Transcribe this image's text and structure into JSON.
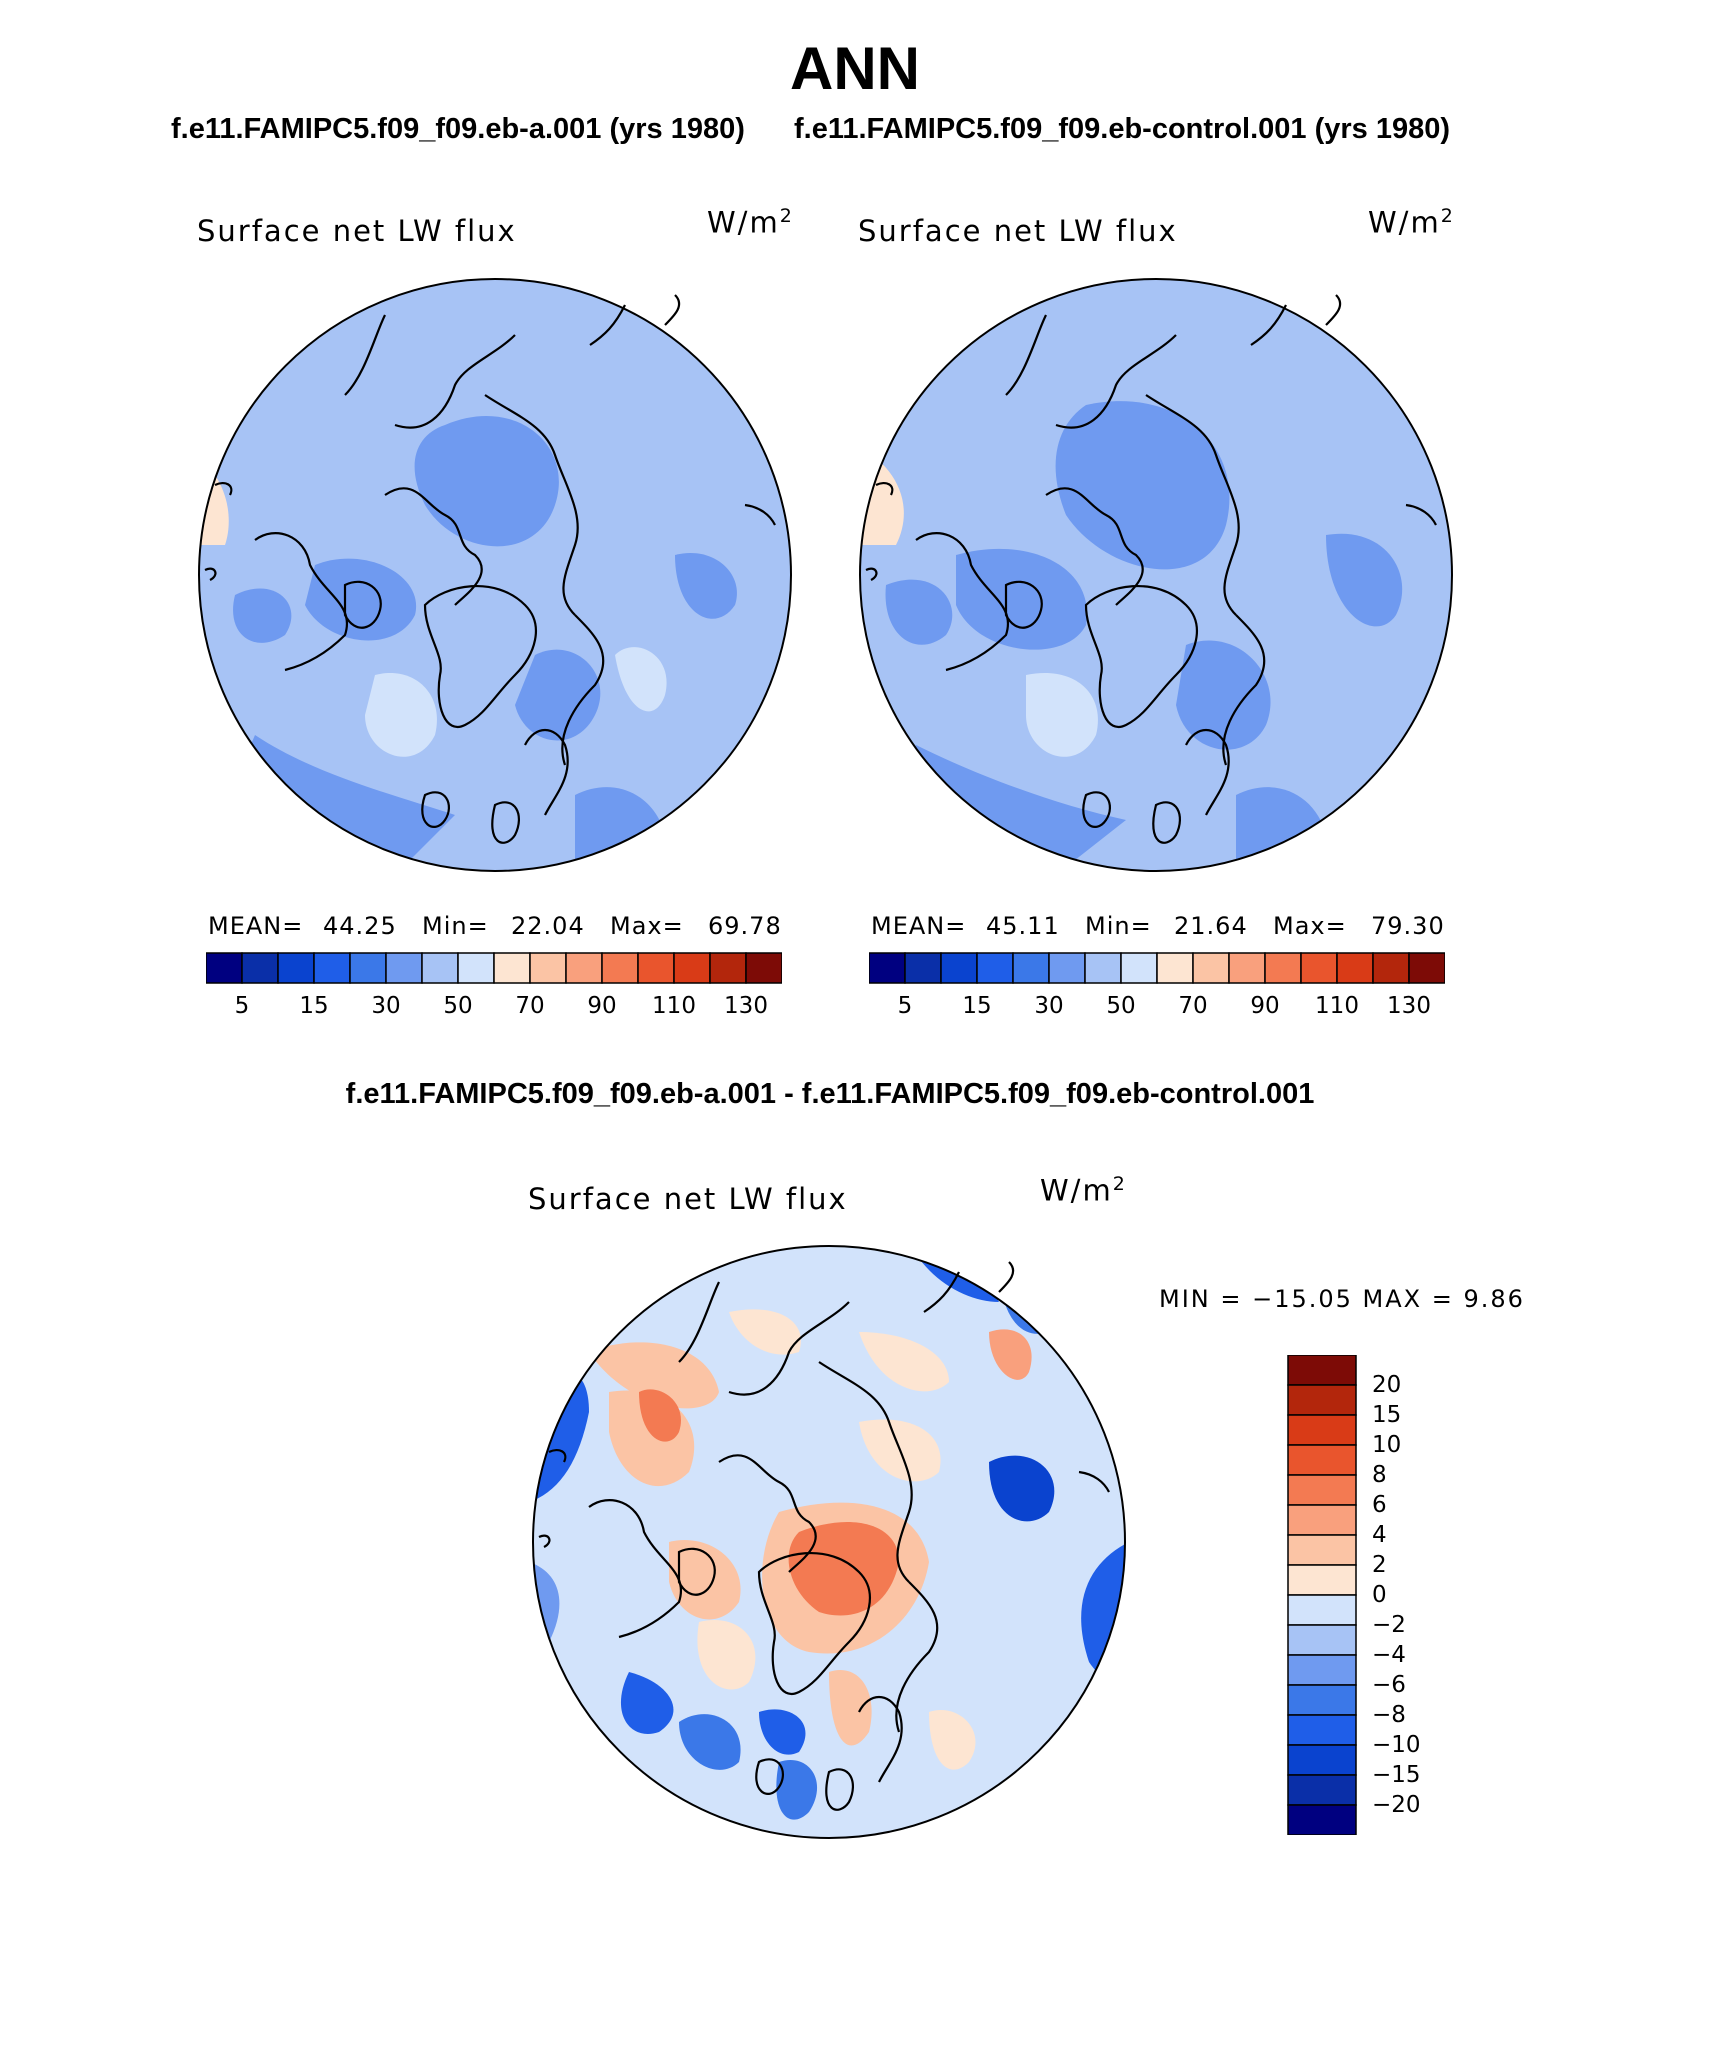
{
  "title": "ANN",
  "case_a": {
    "title": "f.e11.FAMIPC5.f09_f09.eb-a.001 (yrs 1980)"
  },
  "case_b": {
    "title": "f.e11.FAMIPC5.f09_f09.eb-control.001 (yrs 1980)"
  },
  "diff_title": "f.e11.FAMIPC5.f09_f09.eb-a.001 - f.e11.FAMIPC5.f09_f09.eb-control.001",
  "colors": {
    "seq": [
      "#000080",
      "#0a2fa8",
      "#0a43cf",
      "#1f5ee8",
      "#3b78e8",
      "#6f9af0",
      "#a7c3f5",
      "#d2e3fb",
      "#fde5d2",
      "#fbc4a5",
      "#f9a07d",
      "#f37a52",
      "#e9552d",
      "#d93b17",
      "#b3260c",
      "#7d0b06"
    ],
    "diff": [
      "#000080",
      "#0a2fa8",
      "#0a43cf",
      "#1f5ee8",
      "#3b78e8",
      "#6f9af0",
      "#a7c3f5",
      "#d2e3fb",
      "#fde5d2",
      "#fbc4a5",
      "#f9a07d",
      "#f37a52",
      "#e9552d",
      "#d93b17",
      "#b3260c",
      "#7d0b06"
    ]
  },
  "panels": [
    {
      "label": "Surface net LW flux",
      "units_base": "W/m",
      "units_exp": "2",
      "mean_label": "MEAN=",
      "mean": "44.25",
      "min_label": "Min=",
      "min": "22.04",
      "max_label": "Max=",
      "max": "69.78",
      "ticks": [
        "5",
        "15",
        "30",
        "50",
        "70",
        "90",
        "110",
        "130"
      ]
    },
    {
      "label": "Surface net LW flux",
      "units_base": "W/m",
      "units_exp": "2",
      "mean_label": "MEAN=",
      "mean": "45.11",
      "min_label": "Min=",
      "min": "21.64",
      "max_label": "Max=",
      "max": "79.30",
      "ticks": [
        "5",
        "15",
        "30",
        "50",
        "70",
        "90",
        "110",
        "130"
      ]
    }
  ],
  "diff_panel": {
    "label": "Surface net LW flux",
    "units_base": "W/m",
    "units_exp": "2",
    "minmax": "MIN = −15.05 MAX =    9.86",
    "ticks": [
      "20",
      "15",
      "10",
      "8",
      "6",
      "4",
      "2",
      "0",
      "−2",
      "−4",
      "−6",
      "−8",
      "−10",
      "−15",
      "−20"
    ]
  }
}
